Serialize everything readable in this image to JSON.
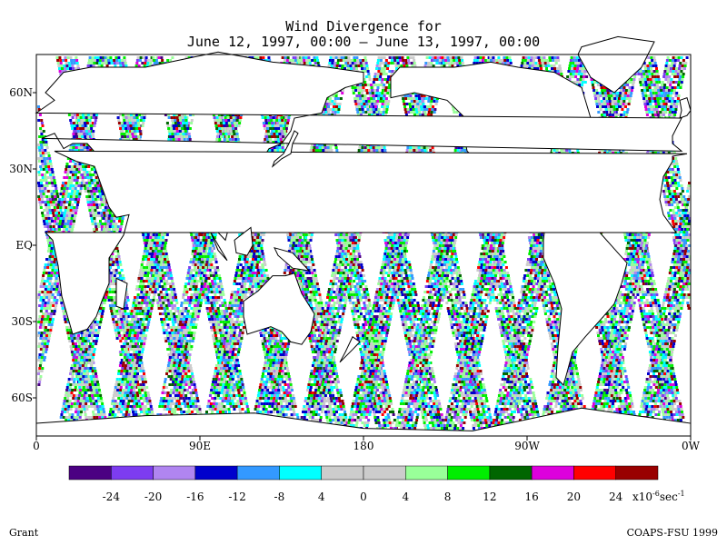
{
  "chart_data": {
    "type": "heatmap",
    "title": "Wind Divergence for",
    "subtitle": "June 12, 1997, 00:00 – June 13, 1997, 00:00",
    "x_ticks": [
      "0",
      "90E",
      "180",
      "90W",
      "0W"
    ],
    "x_tick_values": [
      0,
      90,
      180,
      270,
      360
    ],
    "y_ticks": [
      "60N",
      "30N",
      "EQ",
      "30S",
      "60S"
    ],
    "y_tick_values": [
      60,
      30,
      0,
      -30,
      -60
    ],
    "xlim": [
      0,
      360
    ],
    "ylim": [
      -75,
      75
    ],
    "colorbar": {
      "labels": [
        "-24",
        "-20",
        "-16",
        "-12",
        "-8",
        "4",
        "0",
        "4",
        "8",
        "12",
        "16",
        "20",
        "24"
      ],
      "colors": [
        "#4b0082",
        "#7d3cf0",
        "#b085f0",
        "#0000cc",
        "#3399ff",
        "#00ffff",
        "#cccccc",
        "#cccccc",
        "#99ff99",
        "#00ee00",
        "#006600",
        "#dd00dd",
        "#ff0000",
        "#990000"
      ],
      "unit_main": "x10",
      "unit_exp": "-6",
      "unit_tail": "sec",
      "unit_tail_exp": "-1"
    },
    "credit_left": "Grant",
    "credit_right": "COAPS-FSU 1999"
  }
}
